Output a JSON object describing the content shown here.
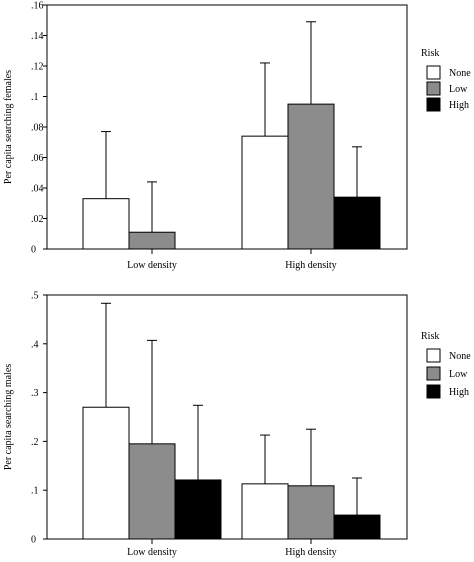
{
  "chart_data": [
    {
      "type": "bar",
      "ylabel": "Per capita searching females",
      "categories": [
        "Low density",
        "High density"
      ],
      "yticks": [
        "0",
        ".02",
        ".04",
        ".06",
        ".08",
        ".1",
        ".12",
        ".14",
        ".16"
      ],
      "ylim": [
        0,
        0.16
      ],
      "legend": {
        "title": "Risk",
        "placement": "right"
      },
      "series": [
        {
          "name": "None",
          "color": "#ffffff",
          "values": [
            0.033,
            0.074
          ],
          "error_upper": [
            0.077,
            0.122
          ]
        },
        {
          "name": "Low",
          "color": "#8c8c8c",
          "values": [
            0.011,
            0.095
          ],
          "error_upper": [
            0.044,
            0.149
          ]
        },
        {
          "name": "High",
          "color": "#000000",
          "values": [
            0.0,
            0.034
          ],
          "error_upper": [
            0.0,
            0.067
          ]
        }
      ]
    },
    {
      "type": "bar",
      "ylabel": "Per capita searching males",
      "categories": [
        "Low density",
        "High density"
      ],
      "yticks": [
        "0",
        ".1",
        ".2",
        ".3",
        ".4",
        ".5"
      ],
      "ylim": [
        0,
        0.5
      ],
      "legend": {
        "title": "Risk",
        "placement": "right"
      },
      "series": [
        {
          "name": "None",
          "color": "#ffffff",
          "values": [
            0.27,
            0.113
          ],
          "error_upper": [
            0.483,
            0.213
          ]
        },
        {
          "name": "Low",
          "color": "#8c8c8c",
          "values": [
            0.195,
            0.109
          ],
          "error_upper": [
            0.407,
            0.225
          ]
        },
        {
          "name": "High",
          "color": "#000000",
          "values": [
            0.121,
            0.049
          ],
          "error_upper": [
            0.274,
            0.125
          ]
        }
      ]
    }
  ]
}
